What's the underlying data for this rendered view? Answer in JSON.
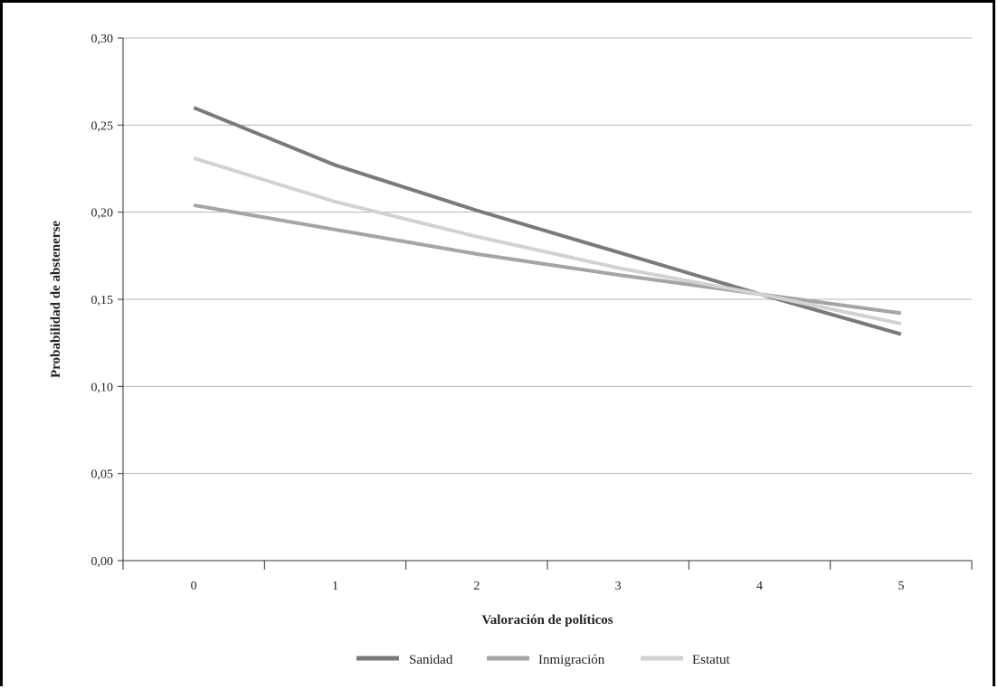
{
  "chart_data": {
    "type": "line",
    "title": "",
    "xlabel": "Valoración de políticos",
    "ylabel": "Probabilidad de abstenerse",
    "x": [
      0,
      1,
      2,
      3,
      4,
      5
    ],
    "xlim": [
      -0.5,
      5.5
    ],
    "ylim": [
      0,
      0.3
    ],
    "yticks": [
      0,
      0.05,
      0.1,
      0.15,
      0.2,
      0.25,
      0.3
    ],
    "ytick_labels": [
      "0,00",
      "0,05",
      "0,10",
      "0,15",
      "0,20",
      "0,25",
      "0,30"
    ],
    "xtick_labels": [
      "0",
      "1",
      "2",
      "3",
      "4",
      "5"
    ],
    "grid": "horizontal",
    "legend_position": "bottom",
    "series": [
      {
        "name": "Sanidad",
        "color": "#7a7a7a",
        "values": [
          0.26,
          0.227,
          0.201,
          0.177,
          0.153,
          0.13
        ]
      },
      {
        "name": "Inmigración",
        "color": "#a5a5a5",
        "values": [
          0.204,
          0.19,
          0.176,
          0.164,
          0.153,
          0.142
        ]
      },
      {
        "name": "Estatut",
        "color": "#d2d2d2",
        "values": [
          0.231,
          0.206,
          0.186,
          0.168,
          0.153,
          0.136
        ]
      }
    ]
  }
}
